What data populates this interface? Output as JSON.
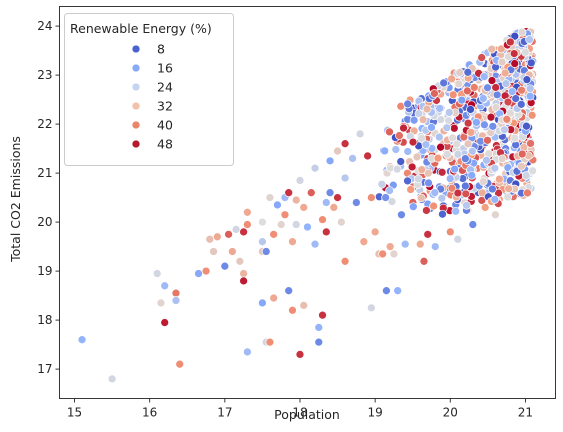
{
  "chart_data": {
    "type": "scatter",
    "title": "",
    "xlabel": "Population",
    "ylabel": "Total CO2 Emissions",
    "xlim": [
      14.8,
      21.4
    ],
    "ylim": [
      16.4,
      24.4
    ],
    "xticks": [
      15,
      16,
      17,
      18,
      19,
      20,
      21
    ],
    "yticks": [
      17,
      18,
      19,
      20,
      21,
      22,
      23,
      24
    ],
    "grid": false,
    "legend": {
      "title": "Renewable Energy (%)",
      "placement": "top-left",
      "entries": [
        {
          "label": "8",
          "value": 8,
          "color": "#4a62cf"
        },
        {
          "label": "16",
          "value": 16,
          "color": "#88a9f5"
        },
        {
          "label": "24",
          "value": 24,
          "color": "#c6d5ef"
        },
        {
          "label": "32",
          "value": 32,
          "color": "#f1c3aa"
        },
        {
          "label": "40",
          "value": 40,
          "color": "#ea8667"
        },
        {
          "label": "48",
          "value": 48,
          "color": "#b51d2f"
        }
      ]
    },
    "hue_range": [
      0,
      52
    ],
    "density_region": {
      "note": "dense band of points",
      "x_range": [
        19.0,
        21.1
      ],
      "lower_edge_at_x": [
        [
          19.0,
          20.5
        ],
        [
          20.0,
          20.1
        ],
        [
          21.0,
          20.5
        ]
      ],
      "upper_edge_at_x": [
        [
          19.0,
          22.1
        ],
        [
          20.0,
          23.0
        ],
        [
          21.0,
          24.0
        ]
      ],
      "approx_count": 900
    },
    "points": [
      [
        15.1,
        17.6,
        14
      ],
      [
        15.5,
        16.8,
        24
      ],
      [
        16.1,
        18.95,
        24
      ],
      [
        16.15,
        18.35,
        28
      ],
      [
        16.2,
        18.7,
        16
      ],
      [
        16.2,
        17.95,
        50
      ],
      [
        16.35,
        18.55,
        42
      ],
      [
        16.35,
        18.4,
        18
      ],
      [
        16.4,
        17.1,
        40
      ],
      [
        16.65,
        18.95,
        12
      ],
      [
        16.75,
        19.0,
        40
      ],
      [
        16.8,
        19.65,
        32
      ],
      [
        16.85,
        19.4,
        30
      ],
      [
        16.9,
        19.7,
        36
      ],
      [
        17.0,
        19.1,
        8
      ],
      [
        17.05,
        19.75,
        44
      ],
      [
        17.1,
        19.4,
        36
      ],
      [
        17.15,
        19.85,
        24
      ],
      [
        17.2,
        19.2,
        30
      ],
      [
        17.25,
        18.95,
        34
      ],
      [
        17.25,
        19.8,
        48
      ],
      [
        17.25,
        18.8,
        50
      ],
      [
        17.3,
        19.95,
        40
      ],
      [
        17.3,
        20.2,
        36
      ],
      [
        17.3,
        17.35,
        16
      ],
      [
        17.5,
        18.35,
        12
      ],
      [
        17.5,
        19.6,
        20
      ],
      [
        17.5,
        19.4,
        30
      ],
      [
        17.5,
        20.0,
        26
      ],
      [
        17.55,
        19.4,
        8
      ],
      [
        17.55,
        17.55,
        24
      ],
      [
        17.6,
        20.5,
        28
      ],
      [
        17.6,
        17.55,
        40
      ],
      [
        17.65,
        19.75,
        40
      ],
      [
        17.65,
        18.45,
        36
      ],
      [
        17.7,
        20.35,
        12
      ],
      [
        17.75,
        19.95,
        28
      ],
      [
        17.8,
        20.5,
        16
      ],
      [
        17.8,
        20.15,
        40
      ],
      [
        17.85,
        20.6,
        48
      ],
      [
        17.85,
        18.6,
        8
      ],
      [
        17.9,
        19.6,
        36
      ],
      [
        17.9,
        18.2,
        40
      ],
      [
        17.95,
        19.95,
        24
      ],
      [
        17.95,
        20.45,
        34
      ],
      [
        18.0,
        20.85,
        24
      ],
      [
        18.0,
        17.3,
        48
      ],
      [
        18.05,
        20.3,
        36
      ],
      [
        18.05,
        18.3,
        32
      ],
      [
        18.1,
        19.9,
        14
      ],
      [
        18.15,
        20.6,
        44
      ],
      [
        18.2,
        21.1,
        22
      ],
      [
        18.2,
        19.55,
        16
      ],
      [
        18.25,
        17.85,
        14
      ],
      [
        18.25,
        17.55,
        8
      ],
      [
        18.3,
        20.05,
        40
      ],
      [
        18.3,
        18.1,
        48
      ],
      [
        18.35,
        19.8,
        48
      ],
      [
        18.35,
        20.4,
        16
      ],
      [
        18.4,
        21.25,
        12
      ],
      [
        18.4,
        20.6,
        8
      ],
      [
        18.45,
        20.3,
        36
      ],
      [
        18.5,
        21.45,
        30
      ],
      [
        18.5,
        20.5,
        48
      ],
      [
        18.55,
        20.0,
        28
      ],
      [
        18.6,
        21.6,
        48
      ],
      [
        18.6,
        19.2,
        40
      ],
      [
        18.6,
        20.9,
        20
      ],
      [
        18.7,
        21.3,
        18
      ],
      [
        18.75,
        20.4,
        8
      ],
      [
        18.8,
        21.8,
        24
      ],
      [
        18.85,
        19.6,
        36
      ],
      [
        18.9,
        21.35,
        48
      ],
      [
        18.95,
        18.25,
        24
      ],
      [
        18.95,
        20.5,
        40
      ],
      [
        19.0,
        19.8,
        36
      ],
      [
        19.05,
        19.35,
        32
      ],
      [
        19.1,
        19.35,
        40
      ],
      [
        19.15,
        18.6,
        8
      ],
      [
        19.2,
        19.5,
        36
      ],
      [
        19.25,
        19.35,
        28
      ],
      [
        19.3,
        18.6,
        14
      ],
      [
        19.35,
        20.15,
        8
      ],
      [
        19.4,
        19.55,
        16
      ],
      [
        19.6,
        19.55,
        36
      ],
      [
        19.65,
        19.2,
        44
      ],
      [
        19.7,
        19.75,
        48
      ],
      [
        19.8,
        19.5,
        16
      ],
      [
        20.0,
        19.8,
        40
      ],
      [
        20.1,
        19.65,
        24
      ],
      [
        20.3,
        19.95,
        8
      ],
      [
        20.6,
        20.15,
        28
      ]
    ]
  }
}
